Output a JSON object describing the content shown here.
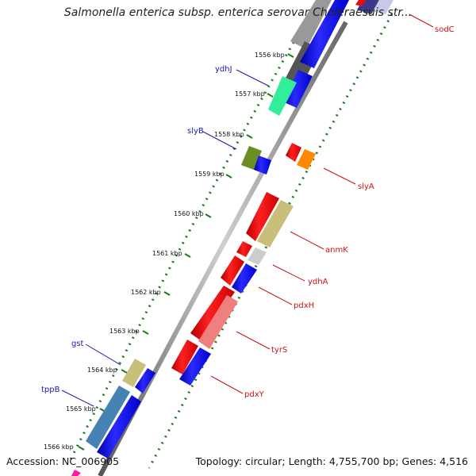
{
  "title": "Salmonella enterica subsp. enterica serovar Choleraesuis str...",
  "footer": {
    "accession": "Accession: NC_006905",
    "topology": "Topology: circular; Length: 4,755,700 bp; Genes: 4,516"
  },
  "colors": {
    "forward_label": "#1a1aaa",
    "reverse_label": "#cc1111",
    "backbone": "#7a7a7a",
    "dots": "#1a7a1a"
  },
  "ticks": [
    "1556 kbp",
    "1557 kbp",
    "1558 kbp",
    "1559 kbp",
    "1560 kbp",
    "1561 kbp",
    "1562 kbp",
    "1563 kbp",
    "1564 kbp",
    "1565 kbp",
    "1566 kbp"
  ],
  "genes": [
    {
      "name": "sodC",
      "strand": "reverse",
      "color": "#dd1111"
    },
    {
      "name": "ydhJ",
      "strand": "forward",
      "color": "#33ee99"
    },
    {
      "name": "slyB",
      "strand": "forward",
      "color": "#6b8e23"
    },
    {
      "name": "slyA",
      "strand": "reverse",
      "color": "#ff8800"
    },
    {
      "name": "anmK",
      "strand": "reverse",
      "color": "#c8c07a"
    },
    {
      "name": "ydhA",
      "strand": "reverse",
      "color": "#cccccc"
    },
    {
      "name": "pdxH",
      "strand": "reverse",
      "color": "#ee1111"
    },
    {
      "name": "tyrS",
      "strand": "reverse",
      "color": "#f08080"
    },
    {
      "name": "pdxY",
      "strand": "reverse",
      "color": "#ee1111"
    },
    {
      "name": "gst",
      "strand": "forward",
      "color": "#c8c07a"
    },
    {
      "name": "tppB",
      "strand": "forward",
      "color": "#4682b4"
    }
  ]
}
